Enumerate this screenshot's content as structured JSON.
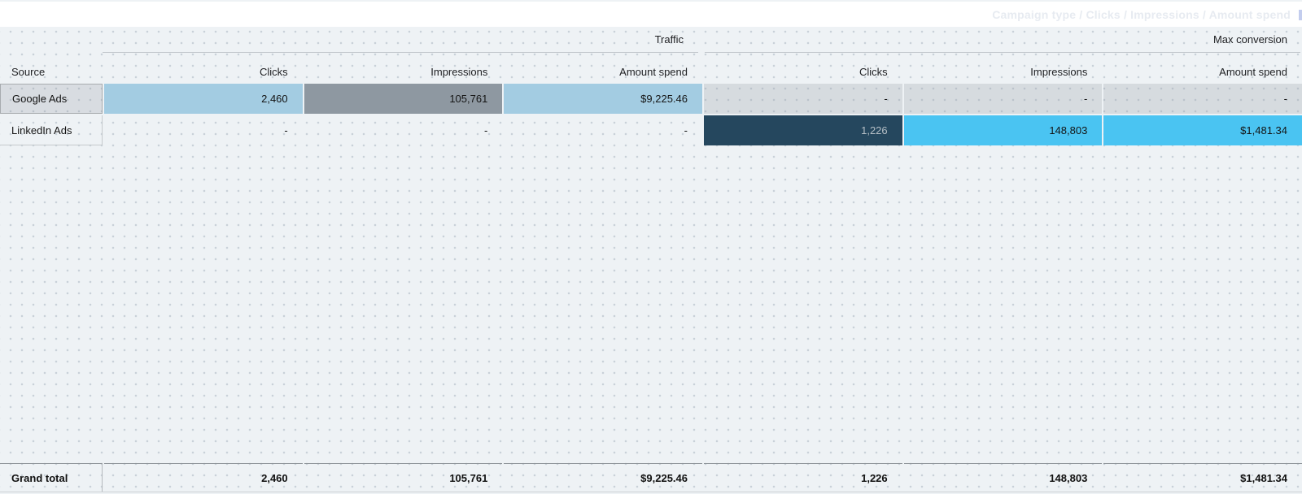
{
  "canvas": {
    "background_color": "#eef2f5",
    "dot_color": "#c9d1d9"
  },
  "toolbar": {
    "ghost_text": "Campaign type / Clicks / Impressions / Amount spend"
  },
  "pivot": {
    "row_dimension_label": "Source",
    "group_headers": [
      {
        "label": "Traffic"
      },
      {
        "label": "Max conversion"
      }
    ],
    "column_headers": [
      "Clicks",
      "Impressions",
      "Amount spend",
      "Clicks",
      "Impressions",
      "Amount spend"
    ],
    "rows": [
      {
        "source": "Google Ads",
        "values": [
          "2,460",
          "105,761",
          "$9,225.46",
          "-",
          "-",
          "-"
        ],
        "cell_styles": [
          "blue",
          "slate",
          "blue",
          "empty",
          "empty",
          "empty"
        ]
      },
      {
        "source": "LinkedIn Ads",
        "values": [
          "-",
          "-",
          "-",
          "1,226",
          "148,803",
          "$1,481.34"
        ],
        "cell_styles": [
          "none",
          "none",
          "none",
          "navy",
          "cyan",
          "cyan"
        ]
      }
    ],
    "grand_total": {
      "label": "Grand total",
      "values": [
        "2,460",
        "105,761",
        "$9,225.46",
        "1,226",
        "148,803",
        "$1,481.34"
      ]
    },
    "heatmap_colors": {
      "light_blue": "#a3cce2",
      "slate_gray": "#8e98a1",
      "dark_navy": "#25475e",
      "bright_cyan": "#4ac4f2",
      "empty_gray": "rgba(145,154,163,0.26)"
    }
  }
}
